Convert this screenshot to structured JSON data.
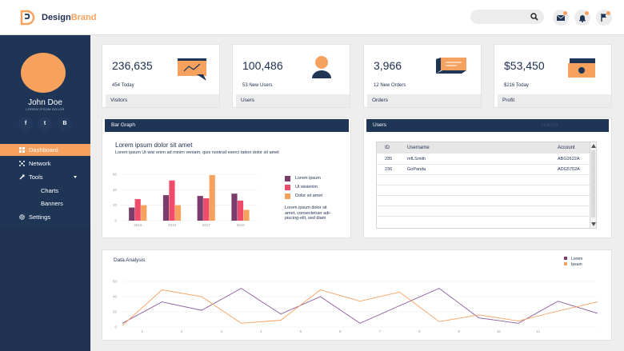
{
  "header": {
    "brand_part1": "Design",
    "brand_part2": "Brand",
    "search_placeholder": "",
    "icons": [
      "search-icon",
      "mail-icon",
      "bell-icon",
      "flag-icon"
    ]
  },
  "profile": {
    "name": "John Doe",
    "subtitle": "LOREM IPSUM DOLOR",
    "social": [
      "f",
      "t",
      "B"
    ]
  },
  "nav": {
    "items": [
      {
        "label": "Dashboard",
        "icon": "dashboard-icon",
        "active": true
      },
      {
        "label": "Network",
        "icon": "network-icon"
      },
      {
        "label": "Tools",
        "icon": "tools-icon",
        "expanded": true
      },
      {
        "label": "Charts",
        "sub": true
      },
      {
        "label": "Banners",
        "sub": true
      },
      {
        "label": "Settings",
        "icon": "gear-icon"
      }
    ]
  },
  "stats": [
    {
      "value": "236,635",
      "sub": "454 Today",
      "label": "Visitors"
    },
    {
      "value": "100,486",
      "sub": "53 New Users",
      "label": "Users"
    },
    {
      "value": "3,966",
      "sub": "12 New Orders",
      "label": "Orders"
    },
    {
      "value": "$53,450",
      "sub": "$216 Today",
      "label": "Profit"
    }
  ],
  "bar_panel": {
    "title": "Bar Graph",
    "heading": "Lorem ipsum dolor sit amet",
    "body": "Lorem ipsum Ut wisi enim ad minim veniam, quis nostrud exerci tation dolor sit amet",
    "legend": [
      "Lorem ipsum",
      "Ut wisienim",
      "Dolor sit amet"
    ],
    "note": "Lorem ipsum dolor sit amet, consectetuer adi-piscing-elit, sed diam"
  },
  "users_panel": {
    "title": "Users",
    "search_placeholder": "SEARCH",
    "columns": [
      "ID",
      "Username",
      "Account"
    ],
    "rows": [
      [
        "235",
        "mfLSmith",
        "ABG2622A"
      ],
      [
        "236",
        "GoPanda",
        "ADG5752A"
      ]
    ]
  },
  "line_panel": {
    "title": "Data Analysis"
  },
  "colors": {
    "navy": "#1e3556",
    "orange": "#f7a15e",
    "purple": "#7a3d6b",
    "pink": "#ef4b6b"
  },
  "chart_data": [
    {
      "type": "bar",
      "categories": [
        "2015",
        "2016",
        "2017",
        "2018"
      ],
      "series": [
        {
          "name": "Lorem ipsum",
          "values": [
            17,
            33,
            32,
            35
          ]
        },
        {
          "name": "Ut wisienim",
          "values": [
            28,
            52,
            29,
            26
          ]
        },
        {
          "name": "Dolor sit amet",
          "values": [
            20,
            20,
            59,
            14
          ]
        }
      ],
      "yticks": [
        "60",
        "40",
        "20",
        "0"
      ],
      "ylim": [
        0,
        60
      ],
      "grid": true,
      "legend_position": "right"
    },
    {
      "type": "line",
      "title": "Data Analysis",
      "x": [
        0,
        1,
        2,
        3,
        4,
        5,
        6,
        7,
        8,
        9,
        10,
        11,
        12
      ],
      "xticks": [
        "1",
        "2",
        "3",
        "4",
        "5",
        "6",
        "7",
        "8",
        "9",
        "10",
        "11"
      ],
      "series": [
        {
          "name": "Lorem",
          "values": [
            5,
            33,
            22,
            51,
            17,
            40,
            5,
            28,
            51,
            12,
            5,
            34,
            18
          ]
        },
        {
          "name": "Ipsum",
          "values": [
            2,
            49,
            40,
            5,
            9,
            49,
            34,
            46,
            7,
            16,
            8,
            21,
            33
          ]
        }
      ],
      "yticks": [
        "60",
        "40",
        "20",
        "0"
      ],
      "ylim": [
        0,
        60
      ],
      "grid": true,
      "legend_position": "top-right"
    }
  ]
}
